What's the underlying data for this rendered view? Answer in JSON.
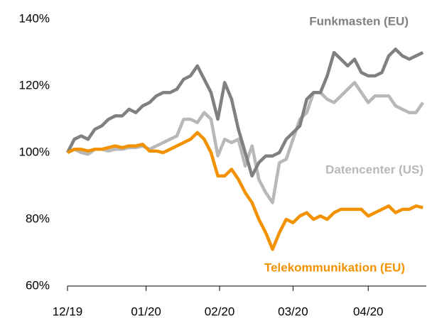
{
  "chart_data": {
    "type": "line",
    "x": [
      0,
      2,
      4,
      6,
      8,
      10,
      12,
      14,
      16,
      18,
      20,
      22,
      24,
      26,
      28,
      30,
      32,
      34,
      36,
      38,
      40,
      42,
      44,
      46,
      48,
      50,
      52,
      54,
      56,
      58,
      60,
      62,
      64,
      66,
      68,
      70,
      72,
      74,
      76,
      78,
      80,
      82,
      84,
      86,
      88,
      90,
      92,
      94,
      96,
      98,
      100,
      102,
      104
    ],
    "series": [
      {
        "name": "Funkmasten (EU)",
        "color": "#808080",
        "values": [
          100,
          104,
          105,
          104,
          107,
          108,
          110,
          111,
          111,
          113,
          112,
          114,
          115,
          117,
          118,
          118,
          119,
          122,
          123,
          126,
          122,
          118,
          110,
          121,
          116,
          107,
          100,
          93,
          97,
          99,
          99,
          100,
          104,
          106,
          108,
          116,
          118,
          118,
          123,
          130,
          128,
          126,
          128,
          124,
          123,
          123,
          124,
          129,
          131,
          129,
          128,
          129,
          130
        ]
      },
      {
        "name": "Datencenter (US)",
        "color": "#b8b8b8",
        "values": [
          100,
          101,
          100,
          99.5,
          101,
          101,
          100.5,
          101,
          101,
          101.5,
          101.5,
          102,
          101,
          102,
          103,
          104,
          105,
          110,
          110,
          109,
          112,
          110,
          99,
          104,
          103,
          104,
          96,
          102,
          92,
          88,
          85,
          97,
          98,
          104,
          110,
          112,
          118,
          118,
          116,
          115,
          117,
          119,
          121,
          118,
          115,
          117,
          117,
          117,
          114,
          113,
          112,
          112,
          115
        ]
      },
      {
        "name": "Telekommunikation (EU)",
        "color": "#f39200",
        "values": [
          100,
          101,
          101,
          100.5,
          101,
          101,
          101.5,
          102,
          101.5,
          102,
          102,
          102.5,
          100.5,
          100.5,
          100,
          101,
          102,
          103,
          104,
          106,
          104,
          100,
          93,
          93,
          95,
          92,
          88,
          85,
          80,
          76,
          71,
          76,
          80,
          79,
          81,
          82,
          80,
          81,
          80,
          82,
          83,
          83,
          83,
          83,
          81,
          82,
          83,
          84,
          82,
          83,
          83,
          84,
          83.5
        ]
      }
    ],
    "xlim": [
      0,
      105
    ],
    "xticks": [
      {
        "value": 0,
        "label": "12/19"
      },
      {
        "value": 23,
        "label": "01/20"
      },
      {
        "value": 44.5,
        "label": "02/20"
      },
      {
        "value": 66,
        "label": "03/20"
      },
      {
        "value": 88,
        "label": "04/20"
      }
    ],
    "ylim": [
      60,
      140
    ],
    "yticks": [
      {
        "value": 60,
        "label": "60%"
      },
      {
        "value": 80,
        "label": "80%"
      },
      {
        "value": 100,
        "label": "100%"
      },
      {
        "value": 120,
        "label": "120%"
      },
      {
        "value": 140,
        "label": "140%"
      }
    ],
    "grid": false
  }
}
